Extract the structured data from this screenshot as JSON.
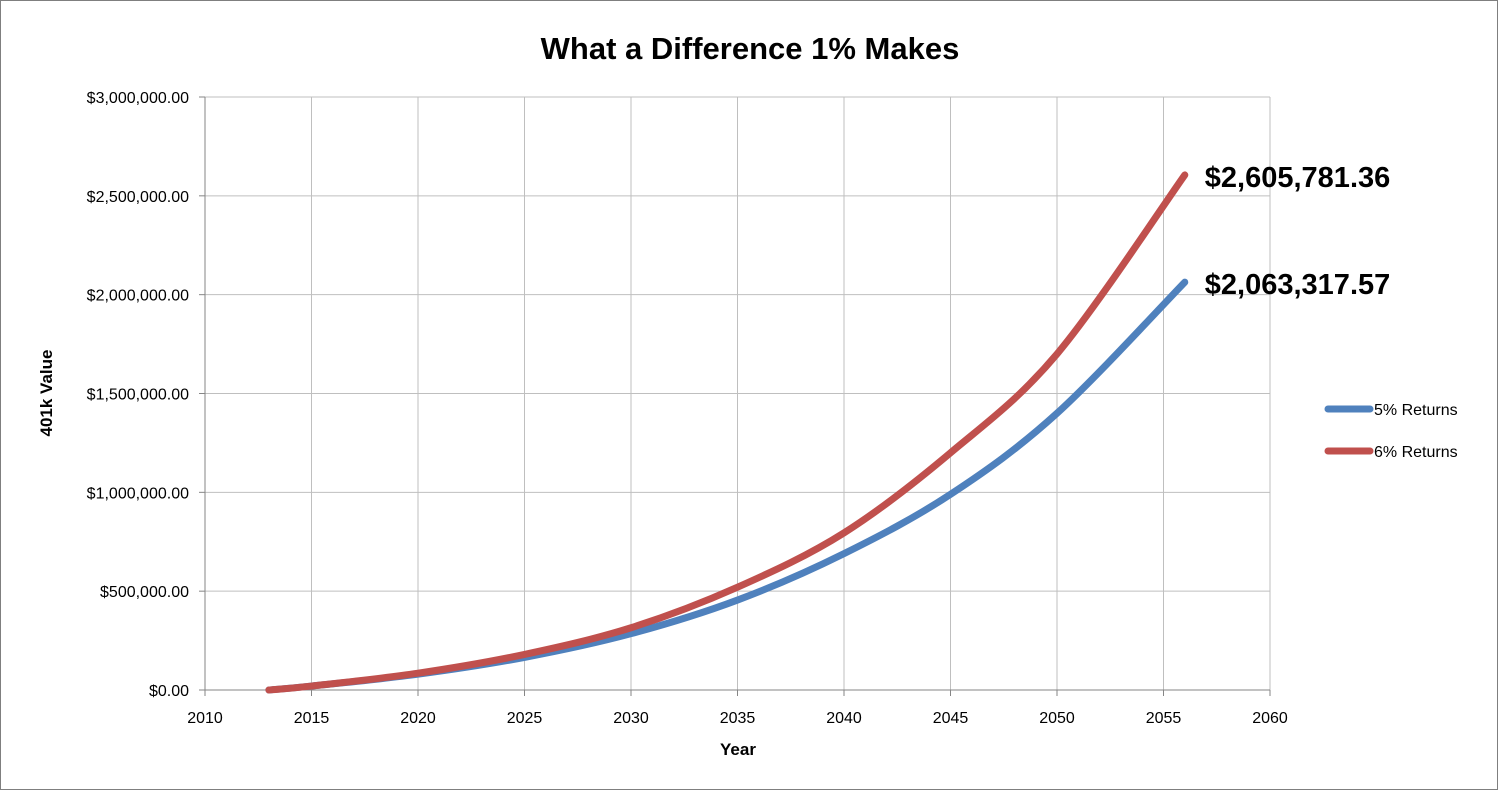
{
  "chart_data": {
    "type": "line",
    "title": "What a Difference 1% Makes",
    "xlabel": "Year",
    "ylabel": "401k Value",
    "xlim": [
      2010,
      2060
    ],
    "ylim": [
      0,
      3000000
    ],
    "x_ticks": [
      "2010",
      "2015",
      "2020",
      "2025",
      "2030",
      "2035",
      "2040",
      "2045",
      "2050",
      "2055",
      "2060"
    ],
    "y_ticks": [
      "$0.00",
      "$500,000.00",
      "$1,000,000.00",
      "$1,500,000.00",
      "$2,000,000.00",
      "$2,500,000.00",
      "$3,000,000.00"
    ],
    "grid": true,
    "legend_position": "right",
    "series": [
      {
        "name": "5% Returns",
        "color": "#4f81bd",
        "x": [
          2013,
          2015,
          2020,
          2025,
          2030,
          2035,
          2040,
          2045,
          2050,
          2056
        ],
        "values": [
          0,
          20000,
          80000,
          165000,
          285000,
          455000,
          690000,
          990000,
          1400000,
          2063317.57
        ],
        "end_label": "$2,063,317.57"
      },
      {
        "name": "6% Returns",
        "color": "#c0504d",
        "x": [
          2013,
          2015,
          2020,
          2025,
          2030,
          2035,
          2040,
          2045,
          2050,
          2056
        ],
        "values": [
          0,
          20000,
          85000,
          180000,
          315000,
          520000,
          795000,
          1200000,
          1700000,
          2605781.36
        ],
        "end_label": "$2,605,781.36"
      }
    ]
  }
}
